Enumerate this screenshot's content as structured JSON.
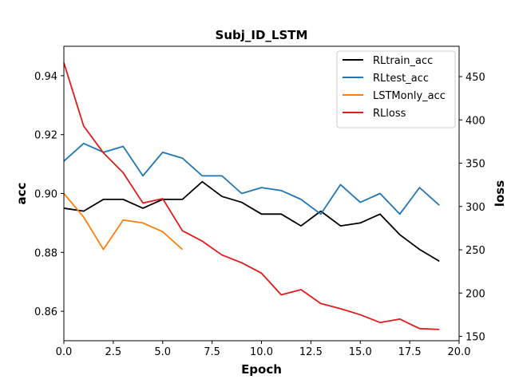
{
  "chart_data": {
    "type": "line",
    "title": "Subj_ID_LSTM",
    "xlabel": "Epoch",
    "ylabel": "acc",
    "y2label": "loss",
    "xlim": [
      0,
      20
    ],
    "ylim": [
      0.85,
      0.95
    ],
    "y2lim": [
      145,
      485
    ],
    "xticks": [
      0,
      2.5,
      5,
      7.5,
      10,
      12.5,
      15,
      17.5,
      20
    ],
    "xtick_labels": [
      "0.0",
      "2.5",
      "5.0",
      "7.5",
      "10.0",
      "12.5",
      "15.0",
      "17.5",
      "20.0"
    ],
    "yticks": [
      0.86,
      0.88,
      0.9,
      0.92,
      0.94
    ],
    "ytick_labels": [
      "0.86",
      "0.88",
      "0.90",
      "0.92",
      "0.94"
    ],
    "y2ticks": [
      150,
      200,
      250,
      300,
      350,
      400,
      450
    ],
    "y2tick_labels": [
      "150",
      "200",
      "250",
      "300",
      "350",
      "400",
      "450"
    ],
    "grid": false,
    "legend_position": "top-right",
    "series": [
      {
        "name": "RLtrain_acc",
        "axis": "left",
        "color": "#000000",
        "x": [
          0,
          1,
          2,
          3,
          4,
          5,
          6,
          7,
          8,
          9,
          10,
          11,
          12,
          13,
          14,
          15,
          16,
          17,
          18,
          19
        ],
        "values": [
          0.895,
          0.894,
          0.898,
          0.898,
          0.895,
          0.898,
          0.898,
          0.904,
          0.899,
          0.897,
          0.893,
          0.893,
          0.889,
          0.894,
          0.889,
          0.89,
          0.893,
          0.886,
          0.881,
          0.877
        ]
      },
      {
        "name": "RLtest_acc",
        "axis": "left",
        "color": "#1f77b4",
        "x": [
          0,
          1,
          2,
          3,
          4,
          5,
          6,
          7,
          8,
          9,
          10,
          11,
          12,
          13,
          14,
          15,
          16,
          17,
          18,
          19
        ],
        "values": [
          0.911,
          0.917,
          0.914,
          0.916,
          0.906,
          0.914,
          0.912,
          0.906,
          0.906,
          0.9,
          0.902,
          0.901,
          0.898,
          0.893,
          0.903,
          0.897,
          0.9,
          0.893,
          0.902,
          0.896
        ]
      },
      {
        "name": "LSTMonly_acc",
        "axis": "left",
        "color": "#ff7f0e",
        "x": [
          0,
          1,
          2,
          3,
          4,
          5,
          6
        ],
        "values": [
          0.9,
          0.892,
          0.881,
          0.891,
          0.89,
          0.887,
          0.881
        ]
      },
      {
        "name": "RLloss",
        "axis": "right",
        "color": "#e31a1c",
        "x": [
          0,
          1,
          2,
          3,
          4,
          5,
          6,
          7,
          8,
          9,
          10,
          11,
          12,
          13,
          14,
          15,
          16,
          17,
          18,
          19
        ],
        "values": [
          466,
          393,
          362,
          339,
          304,
          309,
          272,
          260,
          244,
          235,
          223,
          198,
          204,
          188,
          182,
          175,
          166,
          170,
          159,
          158
        ]
      }
    ]
  }
}
